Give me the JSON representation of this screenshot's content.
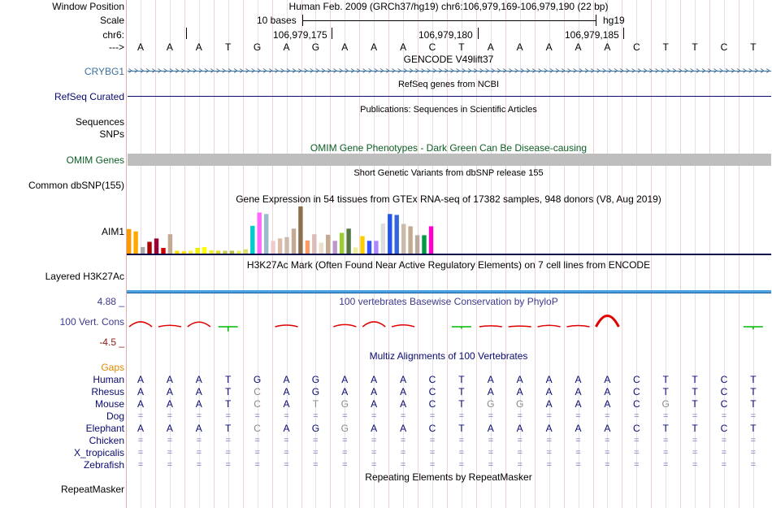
{
  "header": {
    "position_title": "Human Feb. 2009 (GRCh37/hg19)   chr6:106,979,169-106,979,190 (22 bp)",
    "scale_text": "10 bases",
    "assembly": "hg19",
    "ticks": [
      "106,979,175",
      "106,979,180",
      "106,979,185"
    ],
    "arrow": "--->"
  },
  "labels": {
    "window_position": "Window Position",
    "scale": "Scale",
    "chrom": "chr6:",
    "crybg1": "CRYBG1",
    "refseq": "RefSeq Curated",
    "sequences": "Sequences",
    "snps": "SNPs",
    "omim": "OMIM Genes",
    "dbsnp": "Common dbSNP(155)",
    "aim1": "AIM1",
    "h3k27ac": "Layered H3K27Ac",
    "phylop_max": "4.88 _",
    "vert_cons": "100 Vert. Cons",
    "phylop_min": "-4.5 _",
    "gaps": "Gaps",
    "repeatmasker": "RepeatMasker"
  },
  "track_titles": {
    "gencode": "GENCODE V49lift37",
    "refseq": "RefSeq genes from NCBI",
    "publications": "Publications: Sequences in Scientific Articles",
    "omim": "OMIM Gene Phenotypes - Dark Green Can Be Disease-causing",
    "dbsnp": "Short Genetic Variants from dbSNP release 155",
    "gtex": "Gene Expression in 54 tissues from GTEx RNA-seq of 17382 samples, 948 donors (V8, Aug 2019)",
    "h3k27ac": "H3K27Ac Mark (Often Found Near Active Regulatory Elements) on 7 cell lines from ENCODE",
    "phylop": "100 vertebrates Basewise Conservation by PhyloP",
    "multiz": "Multiz Alignments of 100 Vertebrates",
    "repeatmasker": "Repeating Elements by RepeatMasker"
  },
  "reference_sequence": [
    "A",
    "A",
    "A",
    "T",
    "G",
    "A",
    "G",
    "A",
    "A",
    "A",
    "C",
    "T",
    "A",
    "A",
    "A",
    "A",
    "A",
    "C",
    "T",
    "T",
    "C",
    "T"
  ],
  "alignments": [
    {
      "species": "Human",
      "bases": [
        "A",
        "A",
        "A",
        "T",
        "G",
        "A",
        "G",
        "A",
        "A",
        "A",
        "C",
        "T",
        "A",
        "A",
        "A",
        "A",
        "A",
        "C",
        "T",
        "T",
        "C",
        "T"
      ]
    },
    {
      "species": "Rhesus",
      "bases": [
        "A",
        "A",
        "A",
        "T",
        "C",
        "A",
        "G",
        "A",
        "A",
        "A",
        "C",
        "T",
        "A",
        "A",
        "A",
        "A",
        "A",
        "C",
        "T",
        "T",
        "C",
        "T"
      ]
    },
    {
      "species": "Mouse",
      "bases": [
        "A",
        "A",
        "A",
        "T",
        "C",
        "A",
        "T",
        "G",
        "A",
        "A",
        "C",
        "T",
        "G",
        "G",
        "A",
        "A",
        "A",
        "C",
        "G",
        "T",
        "C",
        "T"
      ]
    },
    {
      "species": "Dog",
      "bases": [
        "=",
        "=",
        "=",
        "=",
        "=",
        "=",
        "=",
        "=",
        "=",
        "=",
        "=",
        "=",
        "=",
        "=",
        "=",
        "=",
        "=",
        "=",
        "=",
        "=",
        "=",
        "="
      ]
    },
    {
      "species": "Elephant",
      "bases": [
        "A",
        "A",
        "A",
        "T",
        "C",
        "A",
        "G",
        "G",
        "A",
        "A",
        "C",
        "T",
        "A",
        "A",
        "A",
        "A",
        "A",
        "C",
        "T",
        "T",
        "C",
        "T"
      ]
    },
    {
      "species": "Chicken",
      "bases": [
        "=",
        "=",
        "=",
        "=",
        "=",
        "=",
        "=",
        "=",
        "=",
        "=",
        "=",
        "=",
        "=",
        "=",
        "=",
        "=",
        "=",
        "=",
        "=",
        "=",
        "=",
        "="
      ]
    },
    {
      "species": "X_tropicalis",
      "bases": [
        "=",
        "=",
        "=",
        "=",
        "=",
        "=",
        "=",
        "=",
        "=",
        "=",
        "=",
        "=",
        "=",
        "=",
        "=",
        "=",
        "=",
        "=",
        "=",
        "=",
        "=",
        "="
      ]
    },
    {
      "species": "Zebrafish",
      "bases": [
        "=",
        "=",
        "=",
        "=",
        "=",
        "=",
        "=",
        "=",
        "=",
        "=",
        "=",
        "=",
        "=",
        "=",
        "=",
        "=",
        "=",
        "=",
        "=",
        "=",
        "=",
        "="
      ]
    }
  ],
  "gtex_expression": [
    {
      "value": 0.52,
      "color": "#ff9900"
    },
    {
      "value": 0.47,
      "color": "#ffaa00"
    },
    {
      "value": 0.14,
      "color": "#aaaaaa"
    },
    {
      "value": 0.25,
      "color": "#aa0000"
    },
    {
      "value": 0.32,
      "color": "#990033"
    },
    {
      "value": 0.12,
      "color": "#cc0000"
    },
    {
      "value": 0.41,
      "color": "#c4aa90"
    },
    {
      "value": 0.06,
      "color": "#ffdd00"
    },
    {
      "value": 0.05,
      "color": "#ffdd00"
    },
    {
      "value": 0.06,
      "color": "#ffee44"
    },
    {
      "value": 0.12,
      "color": "#eeee00"
    },
    {
      "value": 0.14,
      "color": "#ffff00"
    },
    {
      "value": 0.07,
      "color": "#eeee33"
    },
    {
      "value": 0.06,
      "color": "#dddd22"
    },
    {
      "value": 0.06,
      "color": "#cccc55"
    },
    {
      "value": 0.06,
      "color": "#bbbb44"
    },
    {
      "value": 0.06,
      "color": "#eeee55"
    },
    {
      "value": 0.09,
      "color": "#dddd66"
    },
    {
      "value": 0.59,
      "color": "#00cccc"
    },
    {
      "value": 0.87,
      "color": "#ff66ff"
    },
    {
      "value": 0.84,
      "color": "#99bbcc"
    },
    {
      "value": 0.27,
      "color": "#eecccc"
    },
    {
      "value": 0.32,
      "color": "#ddbbaa"
    },
    {
      "value": 0.35,
      "color": "#ccbbaa"
    },
    {
      "value": 0.53,
      "color": "#c4aa90"
    },
    {
      "value": 1.0,
      "color": "#8b6f4e"
    },
    {
      "value": 0.28,
      "color": "#ff9966"
    },
    {
      "value": 0.41,
      "color": "#ddbbbb"
    },
    {
      "value": 0.23,
      "color": "#eeddcc"
    },
    {
      "value": 0.4,
      "color": "#c4aa90"
    },
    {
      "value": 0.27,
      "color": "#bb99cc"
    },
    {
      "value": 0.44,
      "color": "#99cc33"
    },
    {
      "value": 0.53,
      "color": "#557744"
    },
    {
      "value": 0.13,
      "color": "#eeee99"
    },
    {
      "value": 0.37,
      "color": "#ffcc00"
    },
    {
      "value": 0.27,
      "color": "#3355ff"
    },
    {
      "value": 0.27,
      "color": "#aa88ff"
    },
    {
      "value": 0.64,
      "color": "#dddddd"
    },
    {
      "value": 0.84,
      "color": "#2255ee"
    },
    {
      "value": 0.82,
      "color": "#3366dd"
    },
    {
      "value": 0.63,
      "color": "#ccbbaa"
    },
    {
      "value": 0.58,
      "color": "#c4aa90"
    },
    {
      "value": 0.39,
      "color": "#bbaa99"
    },
    {
      "value": 0.39,
      "color": "#009944"
    },
    {
      "value": 0.58,
      "color": "#ff00cc"
    }
  ],
  "phylop_scores": [
    2.1,
    0.6,
    2.0,
    -1.8,
    0.0,
    0.7,
    0.0,
    0.9,
    2.1,
    0.8,
    0.0,
    -0.8,
    0.4,
    0.3,
    0.6,
    0.5,
    4.7,
    0.0,
    0.0,
    0.0,
    0.0,
    -1.0
  ],
  "colors": {
    "ruler_line": "#e0b0b0",
    "grid_line": "#c8c8e0",
    "crybg1": "#3a6fa0",
    "refseq": "#0a0a70",
    "omim_bar": "#bebebe",
    "omim_title": "#0d5e24",
    "phylop_pos": "#e00000",
    "phylop_neg": "#00bb00",
    "gaps": "#e08a00",
    "species": "#0a0a70",
    "h3k27ac_bar": "#4aa3e0"
  }
}
